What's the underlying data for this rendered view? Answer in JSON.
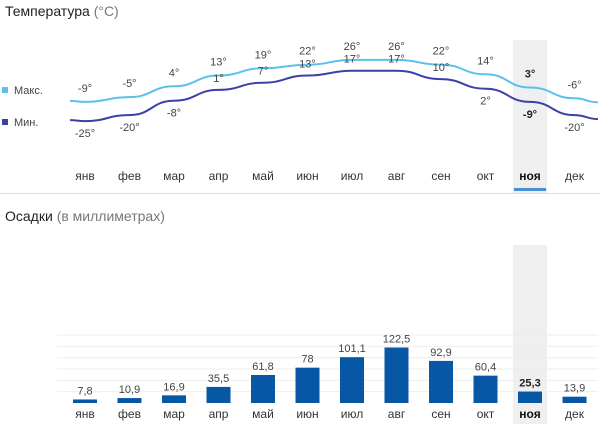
{
  "temperature_panel": {
    "title": "Температура",
    "unit": "(°C)",
    "legend": {
      "max_label": "Макс.",
      "min_label": "Мин."
    }
  },
  "precipitation_panel": {
    "title": "Осадки",
    "unit": "(в миллиметрах)"
  },
  "selected_month_index": 10,
  "colors": {
    "max": "#5bc0eb",
    "min": "#3f3fa8",
    "bar": "#0757a5",
    "highlight": "#efefef",
    "selected_underline": "#4a8fd4"
  },
  "chart_data": [
    {
      "type": "line",
      "title": "Температура (°C)",
      "categories": [
        "янв",
        "фев",
        "мар",
        "апр",
        "май",
        "июн",
        "июл",
        "авг",
        "сен",
        "окт",
        "ноя",
        "дек"
      ],
      "series": [
        {
          "name": "Макс.",
          "values": [
            -9,
            -5,
            4,
            13,
            19,
            22,
            26,
            26,
            22,
            14,
            3,
            -6
          ],
          "labels": [
            "-9°",
            "-5°",
            "4°",
            "13°",
            "19°",
            "22°",
            "26°",
            "26°",
            "22°",
            "14°",
            "3°",
            "-6°"
          ]
        },
        {
          "name": "Мин.",
          "values": [
            -25,
            -20,
            -8,
            1,
            7,
            13,
            17,
            17,
            10,
            2,
            -9,
            -20
          ],
          "labels": [
            "-25°",
            "-20°",
            "-8°",
            "1°",
            "7°",
            "13°",
            "17°",
            "17°",
            "10°",
            "2°",
            "-9°",
            "-20°"
          ]
        }
      ]
    },
    {
      "type": "bar",
      "title": "Осадки (в миллиметрах)",
      "categories": [
        "янв",
        "фев",
        "мар",
        "апр",
        "май",
        "июн",
        "июл",
        "авг",
        "сен",
        "окт",
        "ноя",
        "дек"
      ],
      "values": [
        7.8,
        10.9,
        16.9,
        35.5,
        61.8,
        78,
        101.1,
        122.5,
        92.9,
        60.4,
        25.3,
        13.9
      ],
      "labels": [
        "7,8",
        "10,9",
        "16,9",
        "35,5",
        "61,8",
        "78",
        "101,1",
        "122,5",
        "92,9",
        "60,4",
        "25,3",
        "13,9"
      ],
      "grid": true
    }
  ]
}
